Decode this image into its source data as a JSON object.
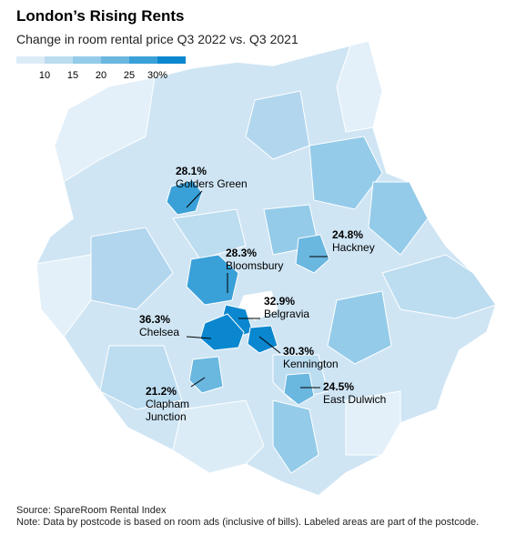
{
  "header": {
    "title": "London’s Rising Rents",
    "subtitle": "Change in room rental price Q3 2022 vs. Q3 2021"
  },
  "legend": {
    "colors": [
      "#dcecf7",
      "#bcdcf0",
      "#94cbe9",
      "#6ab7e0",
      "#3aa0d8",
      "#0a87cf"
    ],
    "ticks": [
      10,
      15,
      20,
      25,
      {
        "value": 30,
        "label": "30%"
      }
    ]
  },
  "areas": [
    {
      "name": "Golders Green",
      "value": 28.1,
      "value_label": "28.1%"
    },
    {
      "name": "Hackney",
      "value": 24.8,
      "value_label": "24.8%"
    },
    {
      "name": "Bloomsbury",
      "value": 28.3,
      "value_label": "28.3%"
    },
    {
      "name": "Belgravia",
      "value": 32.9,
      "value_label": "32.9%"
    },
    {
      "name": "Chelsea",
      "value": 36.3,
      "value_label": "36.3%"
    },
    {
      "name": "Kennington",
      "value": 30.3,
      "value_label": "30.3%"
    },
    {
      "name": "East Dulwich",
      "value": 24.5,
      "value_label": "24.5%"
    },
    {
      "name": "Clapham Junction",
      "value": 21.2,
      "value_label": "21.2%"
    }
  ],
  "footer": {
    "source": "Source: SpareRoom Rental Index",
    "note": "Note: Data by postcode is based on room ads (inclusive of bills). Labeled areas are part of the postcode."
  }
}
